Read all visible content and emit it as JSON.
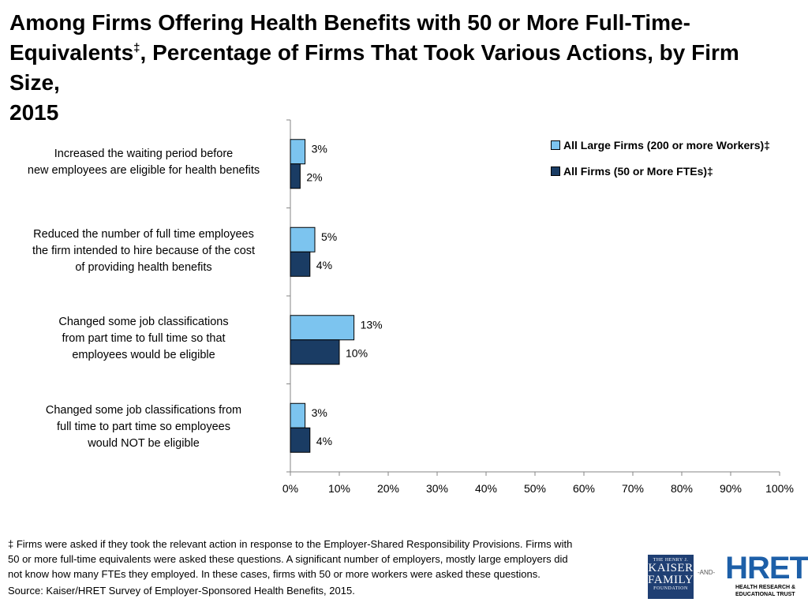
{
  "title": {
    "line1": "Among Firms Offering Health Benefits with 50 or More Full-Time-",
    "line2_a": "Equivalents",
    "line2_mark": "‡",
    "line2_b": ", Percentage of Firms That Took Various Actions, by Firm Size,",
    "line3": "2015"
  },
  "colors": {
    "large_firms": "#7cc4ef",
    "all_firms": "#1a3c64"
  },
  "chart_data": {
    "type": "bar",
    "orientation": "horizontal",
    "categories": [
      [
        "Increased the waiting period before",
        "new employees are eligible for health benefits"
      ],
      [
        "Reduced the number of full time employees",
        "the firm intended to hire because of the cost",
        "of providing health benefits"
      ],
      [
        "Changed some job classifications",
        "from part time to full time so that",
        "employees would be eligible"
      ],
      [
        "Changed some job classifications from",
        "full time to part time so employees",
        "would NOT be eligible"
      ]
    ],
    "series": [
      {
        "name": "All Large Firms (200 or more Workers)‡",
        "values": [
          3,
          5,
          13,
          3
        ],
        "labels": [
          "3%",
          "5%",
          "13%",
          "3%"
        ],
        "color": "#7cc4ef"
      },
      {
        "name": "All Firms (50 or More FTEs)‡",
        "values": [
          2,
          4,
          10,
          4
        ],
        "labels": [
          "2%",
          "4%",
          "10%",
          "4%"
        ],
        "color": "#1a3c64"
      }
    ],
    "xlim": [
      0,
      100
    ],
    "xticks": [
      "0%",
      "10%",
      "20%",
      "30%",
      "40%",
      "50%",
      "60%",
      "70%",
      "80%",
      "90%",
      "100%"
    ],
    "legend_position": "top-right"
  },
  "footnote": {
    "line1": "‡ Firms  were asked if they took the relevant action in response to the Employer-Shared Responsibility Provisions. Firms with",
    "line2": "50 or more full-time equivalents were asked these questions.  A significant number of employers, mostly large employers did",
    "line3": "not know how many FTEs they employed.  In these cases, firms with 50 or more workers were asked these questions."
  },
  "source": "Source: Kaiser/HRET Survey of Employer-Sponsored Health Benefits, 2015.",
  "logos": {
    "kff_line1": "THE HENRY J.",
    "kff_line2": "KAISER",
    "kff_line3": "FAMILY",
    "kff_line4": "FOUNDATION",
    "and": "-AND-",
    "hret_mark": "HRET",
    "hret_sub1": "HEALTH RESEARCH &",
    "hret_sub2": "EDUCATIONAL TRUST"
  }
}
